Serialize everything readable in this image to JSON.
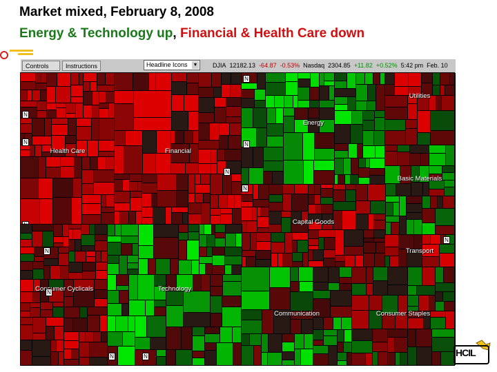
{
  "slide": {
    "title": "Market mixed, February 8, 2008",
    "subtitle_green": "Energy & Technology up",
    "subtitle_comma": ", ",
    "subtitle_red": "Financial & Health Care down",
    "logo_text": "HCIL"
  },
  "toolbar": {
    "controls_label": "Controls",
    "instructions_label": "Instructions",
    "headline_select": "Headline Icons",
    "dropdown_arrow": "▼",
    "dji_label": "DJIA",
    "dji_value": "12182.13",
    "dji_change": "-64.87",
    "dji_pct": "-0.53%",
    "nasdaq_label": "Nasdaq",
    "nasdaq_value": "2304.85",
    "nasdaq_change": "+11.82",
    "nasdaq_pct": "+0.52%",
    "time": "5:42 pm",
    "date": "Feb. 10"
  },
  "news_marker": "N",
  "sectors": [
    {
      "key": "health",
      "name": "Health Care"
    },
    {
      "key": "financial",
      "name": "Financial"
    },
    {
      "key": "energy",
      "name": "Energy"
    },
    {
      "key": "utilities",
      "name": "Utilities"
    },
    {
      "key": "basic",
      "name": "Basic Materials"
    },
    {
      "key": "capital",
      "name": "Capital Goods"
    },
    {
      "key": "transport",
      "name": "Transport"
    },
    {
      "key": "cyclicals",
      "name": "Consumer Cyclicals"
    },
    {
      "key": "technology",
      "name": "Technology"
    },
    {
      "key": "communication",
      "name": "Communication"
    },
    {
      "key": "staples",
      "name": "Consumer Staples"
    }
  ],
  "colors": {
    "title_green": "#1a7a1a",
    "title_red": "#d01010",
    "up": "#00c000",
    "down": "#b00000"
  },
  "icons": [
    "bullet-decoration-icon",
    "hcil-logo-icon"
  ]
}
